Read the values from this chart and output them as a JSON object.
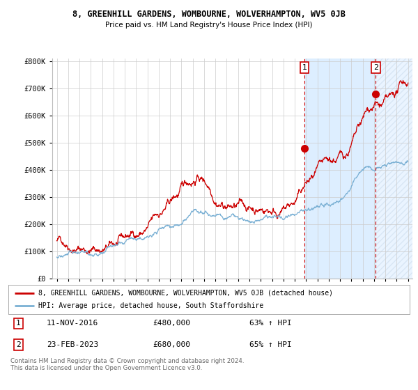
{
  "title1": "8, GREENHILL GARDENS, WOMBOURNE, WOLVERHAMPTON, WV5 0JB",
  "title2": "Price paid vs. HM Land Registry's House Price Index (HPI)",
  "legend_red": "8, GREENHILL GARDENS, WOMBOURNE, WOLVERHAMPTON, WV5 0JB (detached house)",
  "legend_blue": "HPI: Average price, detached house, South Staffordshire",
  "annotation1_label": "1",
  "annotation1_date": "11-NOV-2016",
  "annotation1_price": "£480,000",
  "annotation1_hpi": "63% ↑ HPI",
  "annotation2_label": "2",
  "annotation2_date": "23-FEB-2023",
  "annotation2_price": "£680,000",
  "annotation2_hpi": "65% ↑ HPI",
  "footer": "Contains HM Land Registry data © Crown copyright and database right 2024.\nThis data is licensed under the Open Government Licence v3.0.",
  "red_color": "#cc0000",
  "blue_color": "#7ab0d4",
  "shade_color": "#ddeeff",
  "hatch_color": "#ccddee",
  "annotation_color": "#cc0000",
  "bg_color": "#ffffff",
  "grid_color": "#cccccc",
  "ylim": [
    0,
    810000
  ],
  "yticks": [
    0,
    100000,
    200000,
    300000,
    400000,
    500000,
    600000,
    700000,
    800000
  ],
  "ytick_labels": [
    "£0",
    "£100K",
    "£200K",
    "£300K",
    "£400K",
    "£500K",
    "£600K",
    "£700K",
    "£800K"
  ],
  "marker1_x": 2016.87,
  "marker1_y": 480000,
  "marker2_x": 2023.15,
  "marker2_y": 680000,
  "vline1_x": 2016.87,
  "vline2_x": 2023.15,
  "xmin": 1995,
  "xmax": 2026
}
